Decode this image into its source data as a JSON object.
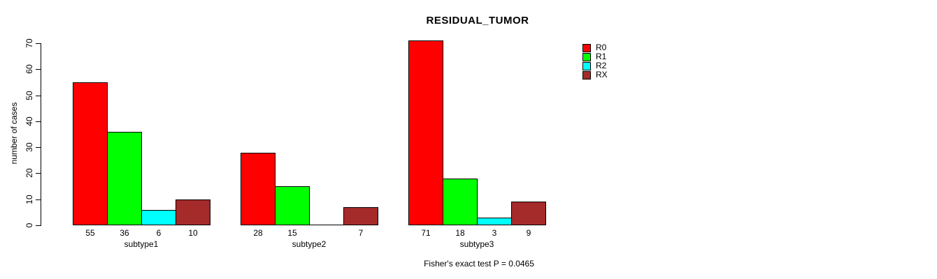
{
  "chart_data": {
    "type": "bar",
    "title": "RESIDUAL_TUMOR",
    "xlabel": "",
    "ylabel": "number of cases",
    "ylim": [
      0,
      70
    ],
    "yticks": [
      0,
      10,
      20,
      30,
      40,
      50,
      60,
      70
    ],
    "grid": false,
    "legend_position": "right",
    "categories": [
      "subtype1",
      "subtype2",
      "subtype3"
    ],
    "series": [
      {
        "name": "R0",
        "color": "#ff0000",
        "values": [
          55,
          28,
          71
        ]
      },
      {
        "name": "R1",
        "color": "#00ff00",
        "values": [
          36,
          15,
          18
        ]
      },
      {
        "name": "R2",
        "color": "#00ffff",
        "values": [
          6,
          0,
          3
        ]
      },
      {
        "name": "RX",
        "color": "#a52a2a",
        "values": [
          10,
          7,
          9
        ]
      }
    ],
    "bar_value_labels_shown": true,
    "annotation": "Fisher's exact test P = 0.0465",
    "colors": {
      "background": "#ffffff",
      "axis": "#000000",
      "text": "#000000"
    }
  }
}
